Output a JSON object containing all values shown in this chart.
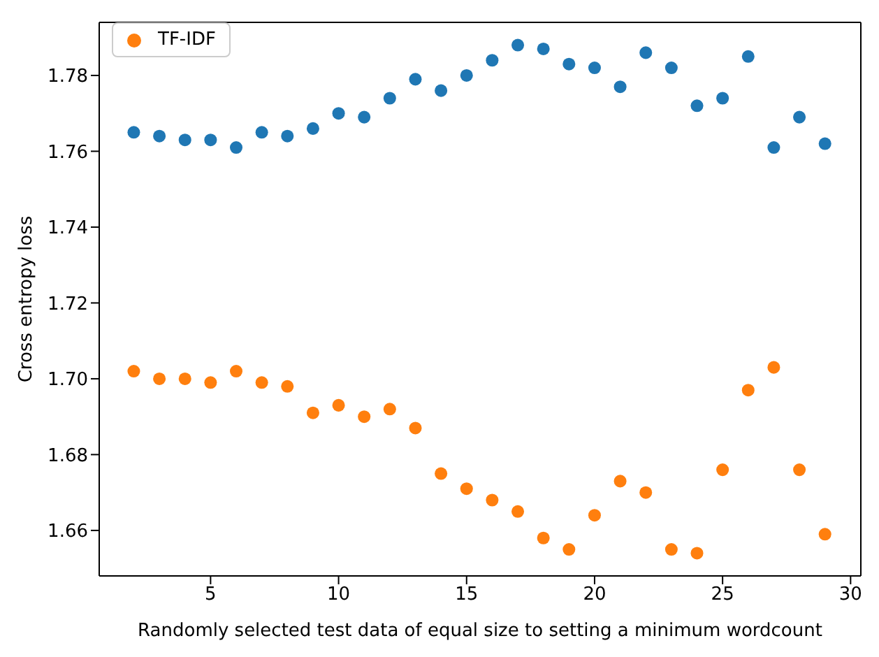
{
  "chart_data": {
    "type": "scatter",
    "xlabel": "Randomly selected test data of equal size to setting a minimum wordcount",
    "ylabel": "Cross entropy loss",
    "x": [
      2,
      3,
      4,
      5,
      6,
      7,
      8,
      9,
      10,
      11,
      12,
      13,
      14,
      15,
      16,
      17,
      18,
      19,
      20,
      21,
      22,
      23,
      24,
      25,
      26,
      27,
      28,
      29
    ],
    "series": [
      {
        "color": "#1f77b4",
        "values": [
          1.765,
          1.764,
          1.763,
          1.763,
          1.761,
          1.765,
          1.764,
          1.766,
          1.77,
          1.769,
          1.774,
          1.779,
          1.776,
          1.78,
          1.784,
          1.788,
          1.787,
          1.783,
          1.782,
          1.777,
          1.786,
          1.782,
          1.772,
          1.774,
          1.785,
          1.761,
          1.769,
          1.762
        ]
      },
      {
        "name": "TF-IDF",
        "color": "#ff7f0e",
        "values": [
          1.702,
          1.7,
          1.7,
          1.699,
          1.702,
          1.699,
          1.698,
          1.691,
          1.693,
          1.69,
          1.692,
          1.687,
          1.675,
          1.671,
          1.668,
          1.665,
          1.658,
          1.655,
          1.664,
          1.673,
          1.67,
          1.655,
          1.654,
          1.676,
          1.697,
          1.703,
          1.676,
          1.659
        ]
      }
    ],
    "xlim": [
      0.65,
      30.4
    ],
    "xticks": [
      5,
      10,
      15,
      20,
      25,
      30
    ],
    "ylim": [
      1.648,
      1.794
    ],
    "yticks": [
      1.66,
      1.68,
      {
        "value": 1.7,
        "label": "1.70"
      },
      1.72,
      1.74,
      1.76,
      1.78
    ],
    "legend": "top left",
    "marker": "circle"
  }
}
